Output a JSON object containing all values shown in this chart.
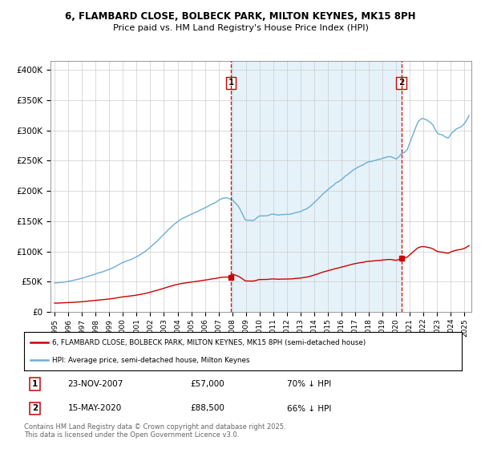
{
  "title_line1": "6, FLAMBARD CLOSE, BOLBECK PARK, MILTON KEYNES, MK15 8PH",
  "title_line2": "Price paid vs. HM Land Registry's House Price Index (HPI)",
  "ylabel_ticks": [
    "£0",
    "£50K",
    "£100K",
    "£150K",
    "£200K",
    "£250K",
    "£300K",
    "£350K",
    "£400K"
  ],
  "ytick_values": [
    0,
    50000,
    100000,
    150000,
    200000,
    250000,
    300000,
    350000,
    400000
  ],
  "ylim": [
    0,
    415000
  ],
  "xlim_start": 1994.7,
  "xlim_end": 2025.5,
  "xtick_years": [
    1995,
    1996,
    1997,
    1998,
    1999,
    2000,
    2001,
    2002,
    2003,
    2004,
    2005,
    2006,
    2007,
    2008,
    2009,
    2010,
    2011,
    2012,
    2013,
    2014,
    2015,
    2016,
    2017,
    2018,
    2019,
    2020,
    2021,
    2022,
    2023,
    2024,
    2025
  ],
  "hpi_color": "#6baed6",
  "hpi_fill_color": "#d6eaf8",
  "price_color": "#cc0000",
  "vline_color": "#cc0000",
  "sale1_x": 2007.9,
  "sale1_y": 57000,
  "sale1_label": "1",
  "sale2_x": 2020.38,
  "sale2_y": 88500,
  "sale2_label": "2",
  "legend_line1": "6, FLAMBARD CLOSE, BOLBECK PARK, MILTON KEYNES, MK15 8PH (semi-detached house)",
  "legend_line2": "HPI: Average price, semi-detached house, Milton Keynes",
  "annotation1_num": "1",
  "annotation1_date": "23-NOV-2007",
  "annotation1_price": "£57,000",
  "annotation1_hpi": "70% ↓ HPI",
  "annotation2_num": "2",
  "annotation2_date": "15-MAY-2020",
  "annotation2_price": "£88,500",
  "annotation2_hpi": "66% ↓ HPI",
  "footer": "Contains HM Land Registry data © Crown copyright and database right 2025.\nThis data is licensed under the Open Government Licence v3.0.",
  "background_color": "#ffffff",
  "grid_color": "#cccccc"
}
